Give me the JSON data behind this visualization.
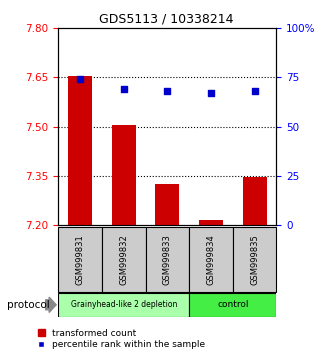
{
  "title": "GDS5113 / 10338214",
  "samples": [
    "GSM999831",
    "GSM999832",
    "GSM999833",
    "GSM999834",
    "GSM999835"
  ],
  "bar_values": [
    7.655,
    7.505,
    7.325,
    7.215,
    7.345
  ],
  "bar_bottom": 7.2,
  "percentile_values": [
    74,
    69,
    68,
    67,
    68
  ],
  "ylim_left": [
    7.2,
    7.8
  ],
  "ylim_right": [
    0,
    100
  ],
  "yticks_left": [
    7.2,
    7.35,
    7.5,
    7.65,
    7.8
  ],
  "yticks_right": [
    0,
    25,
    50,
    75,
    100
  ],
  "bar_color": "#cc0000",
  "point_color": "#0000cc",
  "group1_label": "Grainyhead-like 2 depletion",
  "group2_label": "control",
  "group1_color": "#aaffaa",
  "group2_color": "#44ee44",
  "group1_count": 3,
  "group2_count": 2,
  "protocol_label": "protocol",
  "legend_bar_label": "transformed count",
  "legend_point_label": "percentile rank within the sample",
  "bar_width": 0.55,
  "title_fontsize": 9,
  "tick_fontsize": 7.5,
  "label_fontsize": 6,
  "group_fontsize": 5.5,
  "legend_fontsize": 6.5
}
